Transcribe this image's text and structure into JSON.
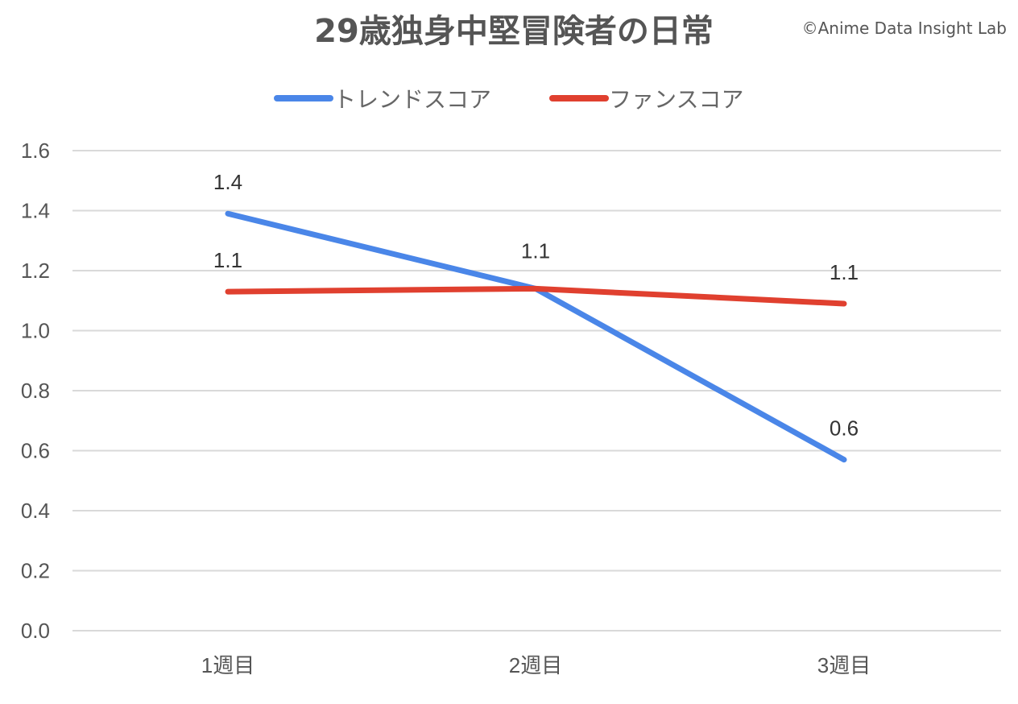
{
  "chart_data": {
    "type": "line",
    "title": "29歳独身中堅冒険者の日常",
    "credit": "©Anime Data Insight Lab",
    "categories": [
      "1週目",
      "2週目",
      "3週目"
    ],
    "series": [
      {
        "name": "トレンドスコア",
        "color": "#4a86e8",
        "values": [
          1.39,
          1.14,
          0.57
        ],
        "labels": [
          "1.4",
          null,
          "0.6"
        ]
      },
      {
        "name": "ファンスコア",
        "color": "#e0402f",
        "values": [
          1.13,
          1.14,
          1.09
        ],
        "labels": [
          "1.1",
          "1.1",
          "1.1"
        ]
      }
    ],
    "yticks": [
      "0.0",
      "0.2",
      "0.4",
      "0.6",
      "0.8",
      "1.0",
      "1.2",
      "1.4",
      "1.6"
    ],
    "ylim": [
      0,
      1.6
    ],
    "xlabel": "",
    "ylabel": "",
    "grid": true,
    "legend_position": "top"
  }
}
